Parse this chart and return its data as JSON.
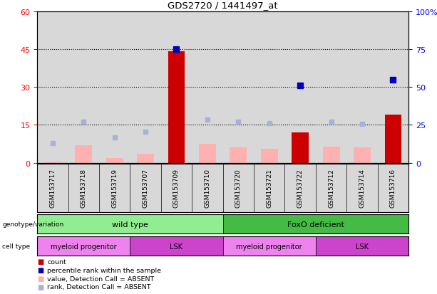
{
  "title": "GDS2720 / 1441497_at",
  "samples": [
    "GSM153717",
    "GSM153718",
    "GSM153719",
    "GSM153707",
    "GSM153709",
    "GSM153710",
    "GSM153720",
    "GSM153721",
    "GSM153722",
    "GSM153712",
    "GSM153714",
    "GSM153716"
  ],
  "bar_values_absent": [
    0.3,
    7.0,
    2.0,
    3.5,
    null,
    7.5,
    6.0,
    5.5,
    null,
    6.5,
    6.0,
    null
  ],
  "bar_values_present": [
    null,
    null,
    null,
    null,
    44.0,
    null,
    null,
    null,
    12.0,
    null,
    null,
    19.0
  ],
  "rank_absent": [
    13.0,
    27.0,
    17.0,
    20.5,
    null,
    28.5,
    27.0,
    26.0,
    null,
    27.0,
    25.5,
    null
  ],
  "rank_present": [
    null,
    null,
    null,
    null,
    75.0,
    null,
    null,
    null,
    51.0,
    null,
    null,
    55.0
  ],
  "ylim_left": [
    0,
    60
  ],
  "ylim_right": [
    0,
    100
  ],
  "yticks_left": [
    0,
    15,
    30,
    45,
    60
  ],
  "ytick_labels_right": [
    "0",
    "25",
    "50",
    "75",
    "100%"
  ],
  "color_bar_absent": "#ffb0b0",
  "color_bar_present": "#cc0000",
  "color_rank_absent": "#aab0d8",
  "color_rank_present": "#0000bb",
  "bg_plot": "#d8d8d8",
  "bg_fig": "#ffffff",
  "genotype_colors": [
    "#90ee90",
    "#44bb44"
  ],
  "celltype_colors_myeloid": "#ee82ee",
  "celltype_colors_lsk": "#cc44cc",
  "legend_items": [
    {
      "label": "count",
      "color": "#cc0000"
    },
    {
      "label": "percentile rank within the sample",
      "color": "#0000bb"
    },
    {
      "label": "value, Detection Call = ABSENT",
      "color": "#ffb0b0"
    },
    {
      "label": "rank, Detection Call = ABSENT",
      "color": "#aab0d8"
    }
  ]
}
